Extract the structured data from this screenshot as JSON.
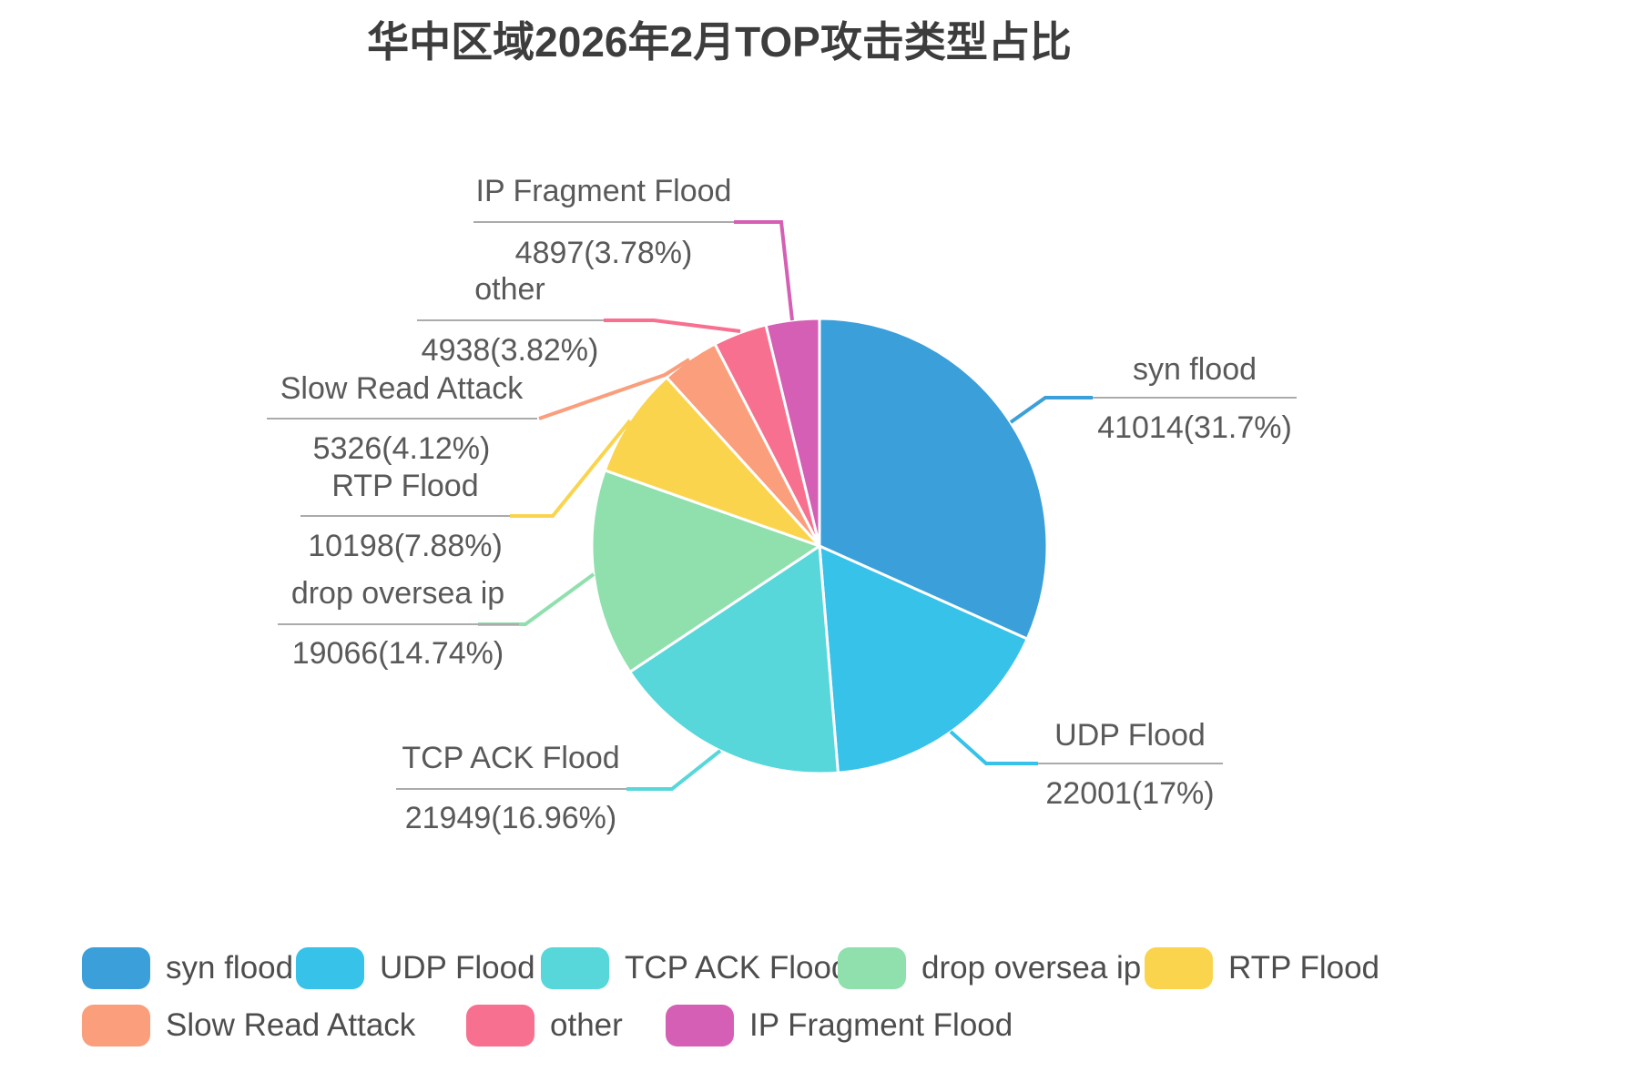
{
  "title": "华中区域2026年2月TOP攻击类型占比",
  "chart_data": {
    "type": "pie",
    "title": "华中区域2026年2月TOP攻击类型占比",
    "total": 129389,
    "start_angle_deg": 0,
    "direction": "clockwise",
    "legend_position": "bottom",
    "items": [
      {
        "name": "syn flood",
        "value": 41014,
        "percent": 31.7,
        "label": "41014(31.7%)",
        "color": "#3B9FD9"
      },
      {
        "name": "UDP Flood",
        "value": 22001,
        "percent": 17,
        "label": "22001(17%)",
        "color": "#36C2E9"
      },
      {
        "name": "TCP ACK Flood",
        "value": 21949,
        "percent": 16.96,
        "label": "21949(16.96%)",
        "color": "#58D7DB"
      },
      {
        "name": "drop oversea ip",
        "value": 19066,
        "percent": 14.74,
        "label": "19066(14.74%)",
        "color": "#8FE0AD"
      },
      {
        "name": "RTP Flood",
        "value": 10198,
        "percent": 7.88,
        "label": "10198(7.88%)",
        "color": "#FBD44E"
      },
      {
        "name": "Slow Read Attack",
        "value": 5326,
        "percent": 4.12,
        "label": "5326(4.12%)",
        "color": "#FA9E7B"
      },
      {
        "name": "other",
        "value": 4938,
        "percent": 3.82,
        "label": "4938(3.82%)",
        "color": "#F8708F"
      },
      {
        "name": "IP Fragment Flood",
        "value": 4897,
        "percent": 3.78,
        "label": "4897(3.78%)",
        "color": "#D45FB4"
      }
    ],
    "legend_rows": [
      [
        "syn flood",
        "UDP Flood",
        "TCP ACK Flood",
        "drop oversea ip",
        "RTP Flood"
      ],
      [
        "Slow Read Attack",
        "other",
        "IP Fragment Flood"
      ]
    ]
  }
}
